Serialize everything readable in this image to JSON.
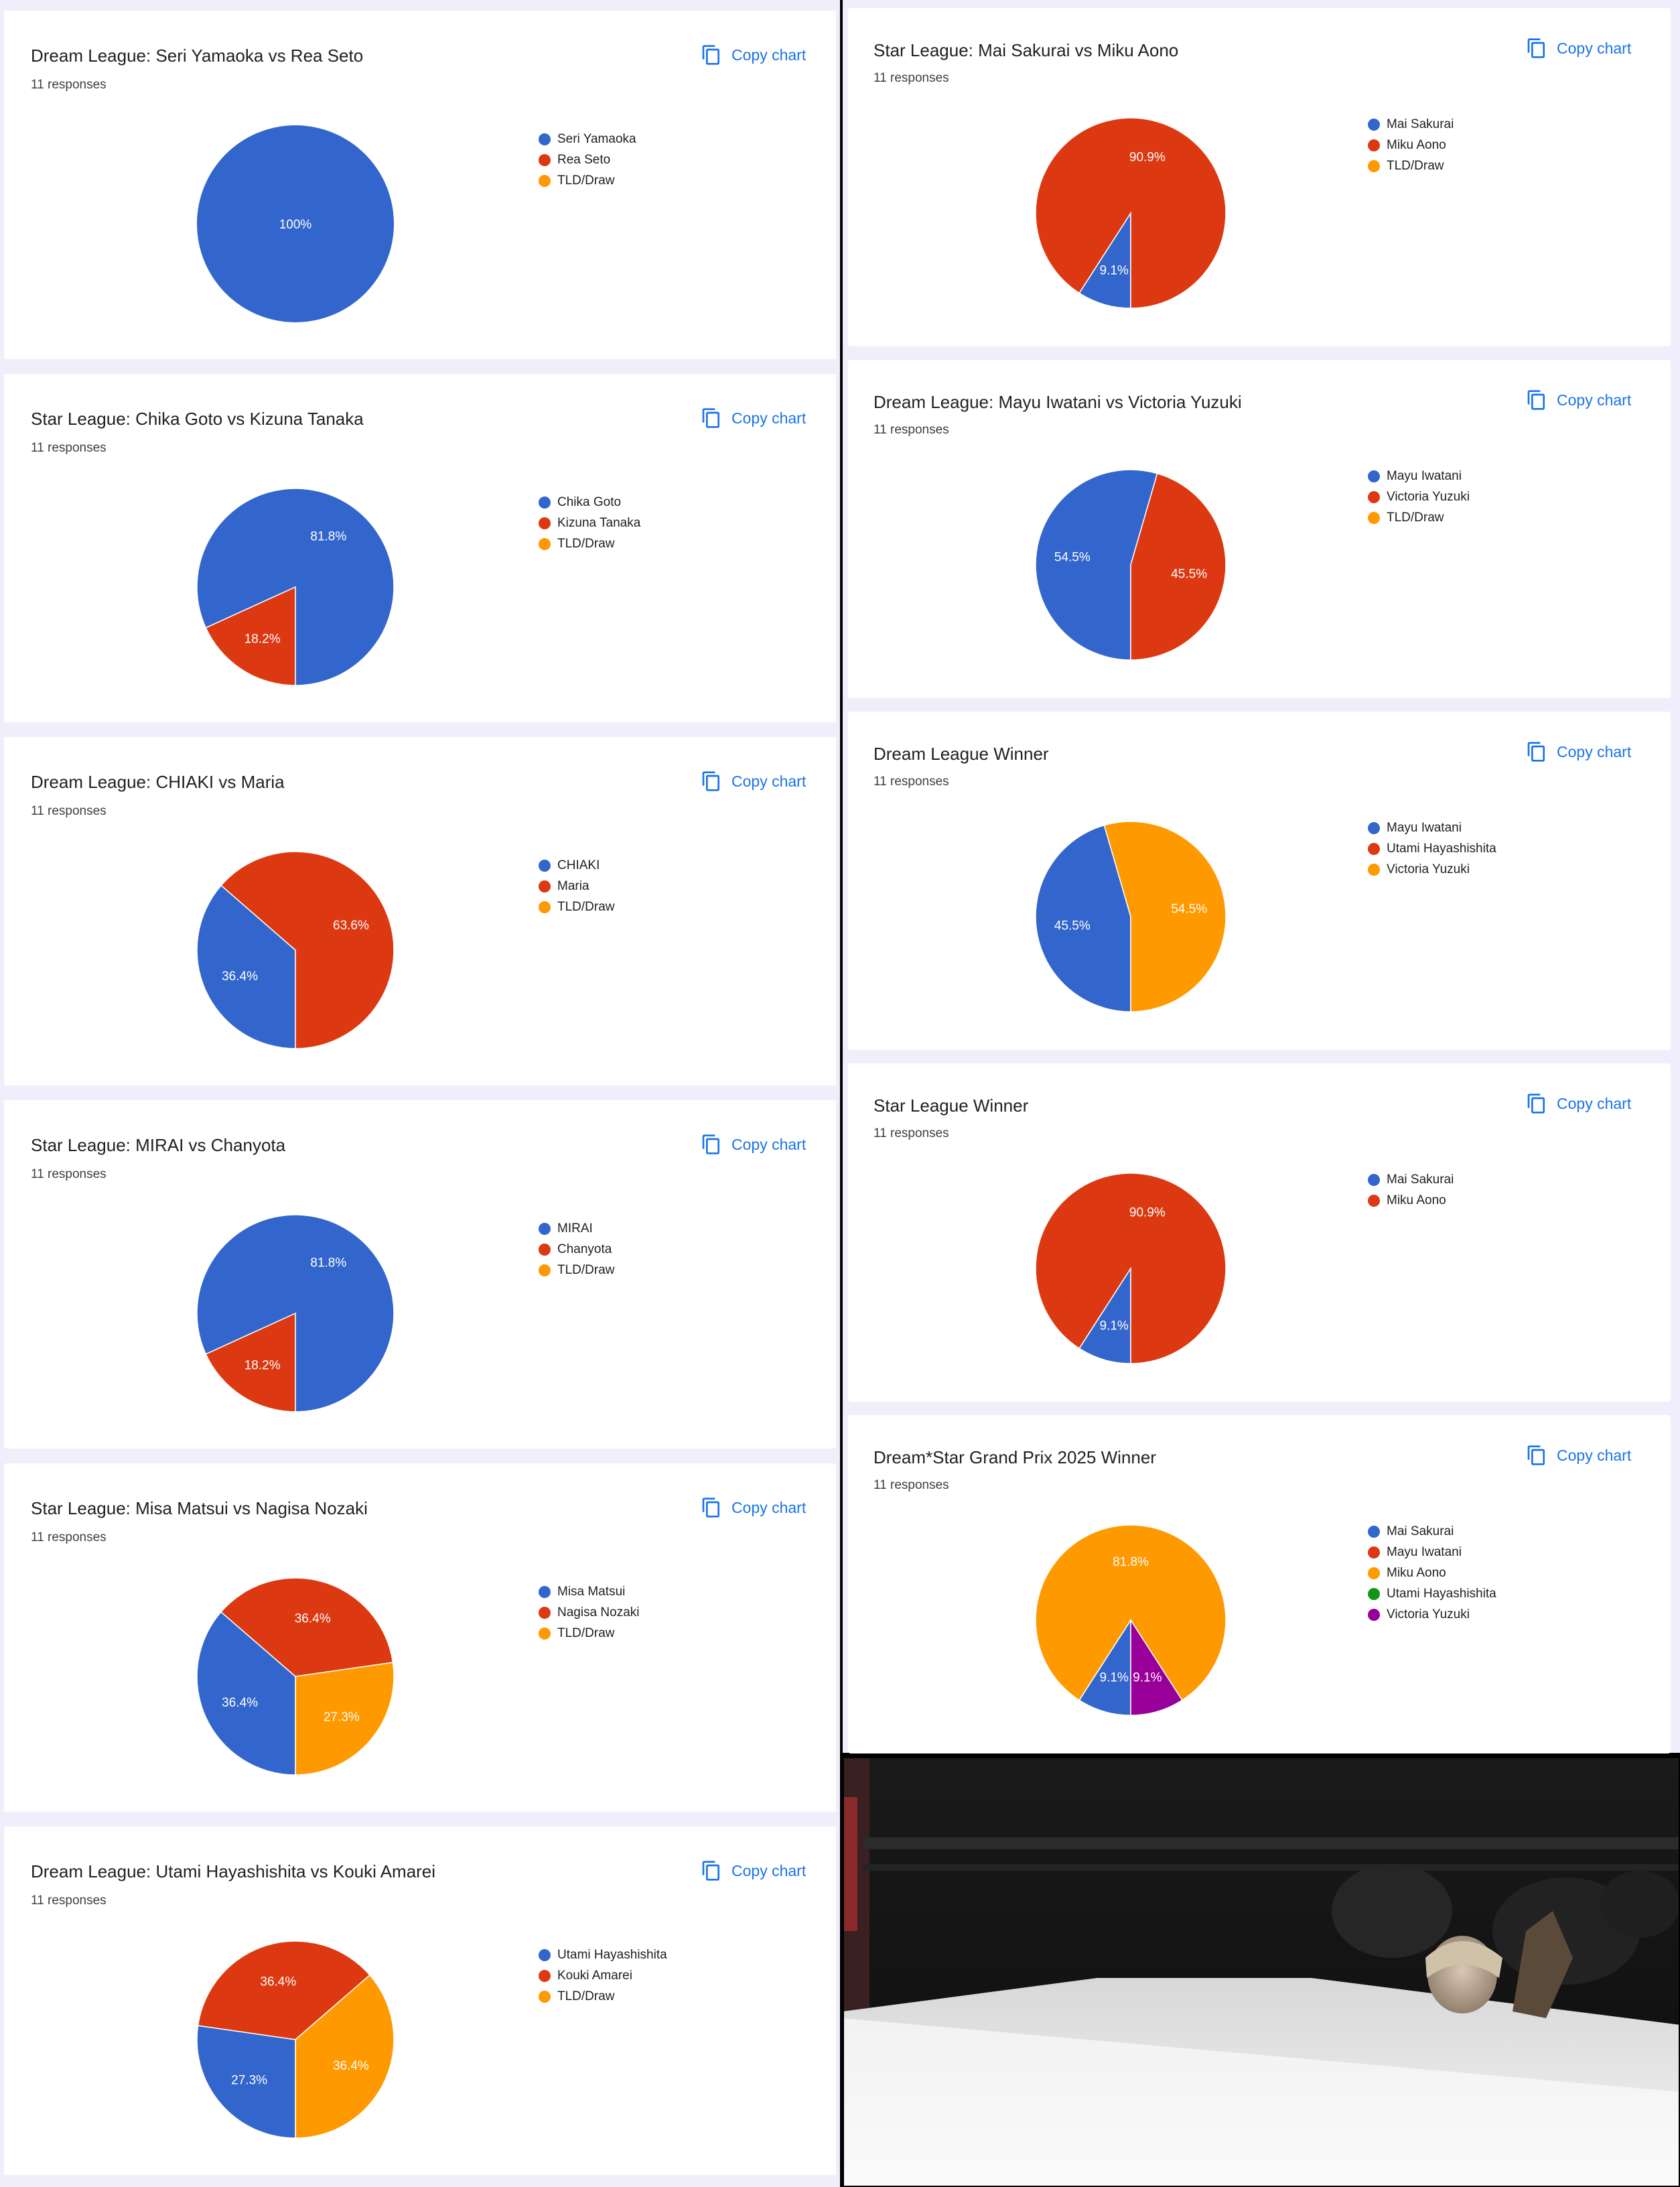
{
  "ui": {
    "copy_label": "Copy chart",
    "responses_label": "11 responses"
  },
  "colors": {
    "blue": "#3366cc",
    "red": "#dc3912",
    "orange": "#ff9900",
    "green": "#109618",
    "purple": "#990099",
    "accent": "#1a73e8"
  },
  "chart_data": [
    {
      "type": "pie",
      "title": "Dream League: Seri Yamaoka vs Rea Seto",
      "responses": "11 responses",
      "legend": [
        "Seri Yamaoka",
        "Rea Seto",
        "TLD/Draw"
      ],
      "legend_colors": [
        "#3366cc",
        "#dc3912",
        "#ff9900"
      ],
      "slices": [
        {
          "label": "Seri Yamaoka",
          "value": 100,
          "text": "100%",
          "color": "#3366cc"
        }
      ]
    },
    {
      "type": "pie",
      "title": "Star League: Chika Goto vs Kizuna Tanaka",
      "responses": "11 responses",
      "legend": [
        "Chika Goto",
        "Kizuna Tanaka",
        "TLD/Draw"
      ],
      "legend_colors": [
        "#3366cc",
        "#dc3912",
        "#ff9900"
      ],
      "slices": [
        {
          "label": "Kizuna Tanaka",
          "value": 18.2,
          "text": "18.2%",
          "color": "#dc3912"
        },
        {
          "label": "Chika Goto",
          "value": 81.8,
          "text": "81.8%",
          "color": "#3366cc"
        }
      ]
    },
    {
      "type": "pie",
      "title": "Dream League: CHIAKI vs Maria",
      "responses": "11 responses",
      "legend": [
        "CHIAKI",
        "Maria",
        "TLD/Draw"
      ],
      "legend_colors": [
        "#3366cc",
        "#dc3912",
        "#ff9900"
      ],
      "slices": [
        {
          "label": "CHIAKI",
          "value": 36.4,
          "text": "36.4%",
          "color": "#3366cc"
        },
        {
          "label": "Maria",
          "value": 63.6,
          "text": "63.6%",
          "color": "#dc3912"
        }
      ]
    },
    {
      "type": "pie",
      "title": "Star League: MIRAI vs Chanyota",
      "responses": "11 responses",
      "legend": [
        "MIRAI",
        "Chanyota",
        "TLD/Draw"
      ],
      "legend_colors": [
        "#3366cc",
        "#dc3912",
        "#ff9900"
      ],
      "slices": [
        {
          "label": "Chanyota",
          "value": 18.2,
          "text": "18.2%",
          "color": "#dc3912"
        },
        {
          "label": "MIRAI",
          "value": 81.8,
          "text": "81.8%",
          "color": "#3366cc"
        }
      ]
    },
    {
      "type": "pie",
      "title": "Star League: Misa Matsui vs Nagisa Nozaki",
      "responses": "11 responses",
      "legend": [
        "Misa Matsui",
        "Nagisa Nozaki",
        "TLD/Draw"
      ],
      "legend_colors": [
        "#3366cc",
        "#dc3912",
        "#ff9900"
      ],
      "slices": [
        {
          "label": "Misa Matsui",
          "value": 36.4,
          "text": "36.4%",
          "color": "#3366cc"
        },
        {
          "label": "Nagisa Nozaki",
          "value": 36.4,
          "text": "36.4%",
          "color": "#dc3912"
        },
        {
          "label": "TLD/Draw",
          "value": 27.3,
          "text": "27.3%",
          "color": "#ff9900"
        }
      ]
    },
    {
      "type": "pie",
      "title": "Dream League: Utami Hayashishita vs Kouki Amarei",
      "responses": "11 responses",
      "legend": [
        "Utami Hayashishita",
        "Kouki Amarei",
        "TLD/Draw"
      ],
      "legend_colors": [
        "#3366cc",
        "#dc3912",
        "#ff9900"
      ],
      "slices": [
        {
          "label": "Utami Hayashishita",
          "value": 27.3,
          "text": "27.3%",
          "color": "#3366cc"
        },
        {
          "label": "Kouki Amarei",
          "value": 36.4,
          "text": "36.4%",
          "color": "#dc3912"
        },
        {
          "label": "TLD/Draw",
          "value": 36.4,
          "text": "36.4%",
          "color": "#ff9900"
        }
      ]
    },
    {
      "type": "pie",
      "title": "Star League: Mai Sakurai vs Miku Aono",
      "responses": "11 responses",
      "legend": [
        "Mai Sakurai",
        "Miku Aono",
        "TLD/Draw"
      ],
      "legend_colors": [
        "#3366cc",
        "#dc3912",
        "#ff9900"
      ],
      "slices": [
        {
          "label": "Mai Sakurai",
          "value": 9.1,
          "text": "9.1%",
          "color": "#3366cc"
        },
        {
          "label": "Miku Aono",
          "value": 90.9,
          "text": "90.9%",
          "color": "#dc3912"
        }
      ]
    },
    {
      "type": "pie",
      "title": "Dream League: Mayu Iwatani vs Victoria Yuzuki",
      "responses": "11 responses",
      "legend": [
        "Mayu Iwatani",
        "Victoria Yuzuki",
        "TLD/Draw"
      ],
      "legend_colors": [
        "#3366cc",
        "#dc3912",
        "#ff9900"
      ],
      "slices": [
        {
          "label": "Mayu Iwatani",
          "value": 54.5,
          "text": "54.5%",
          "color": "#3366cc"
        },
        {
          "label": "Victoria Yuzuki",
          "value": 45.5,
          "text": "45.5%",
          "color": "#dc3912"
        }
      ]
    },
    {
      "type": "pie",
      "title": "Dream League Winner",
      "responses": "11 responses",
      "legend": [
        "Mayu Iwatani",
        "Utami Hayashishita",
        "Victoria Yuzuki"
      ],
      "legend_colors": [
        "#3366cc",
        "#dc3912",
        "#ff9900"
      ],
      "slices": [
        {
          "label": "Mayu Iwatani",
          "value": 45.5,
          "text": "45.5%",
          "color": "#3366cc"
        },
        {
          "label": "Victoria Yuzuki",
          "value": 54.5,
          "text": "54.5%",
          "color": "#ff9900"
        }
      ]
    },
    {
      "type": "pie",
      "title": "Star League Winner",
      "responses": "11 responses",
      "legend": [
        "Mai Sakurai",
        "Miku Aono"
      ],
      "legend_colors": [
        "#3366cc",
        "#dc3912"
      ],
      "slices": [
        {
          "label": "Mai Sakurai",
          "value": 9.1,
          "text": "9.1%",
          "color": "#3366cc"
        },
        {
          "label": "Miku Aono",
          "value": 90.9,
          "text": "90.9%",
          "color": "#dc3912"
        }
      ]
    },
    {
      "type": "pie",
      "title": "Dream*Star Grand Prix 2025 Winner",
      "responses": "11 responses",
      "legend": [
        "Mai Sakurai",
        "Mayu Iwatani",
        "Miku Aono",
        "Utami Hayashishita",
        "Victoria Yuzuki"
      ],
      "legend_colors": [
        "#3366cc",
        "#dc3912",
        "#ff9900",
        "#109618",
        "#990099"
      ],
      "slices": [
        {
          "label": "Mai Sakurai",
          "value": 9.1,
          "text": "9.1%",
          "color": "#3366cc"
        },
        {
          "label": "Miku Aono",
          "value": 81.8,
          "text": "81.8%",
          "color": "#ff9900"
        },
        {
          "label": "Victoria Yuzuki",
          "value": 9.1,
          "text": "9.1%",
          "color": "#990099"
        }
      ]
    }
  ]
}
